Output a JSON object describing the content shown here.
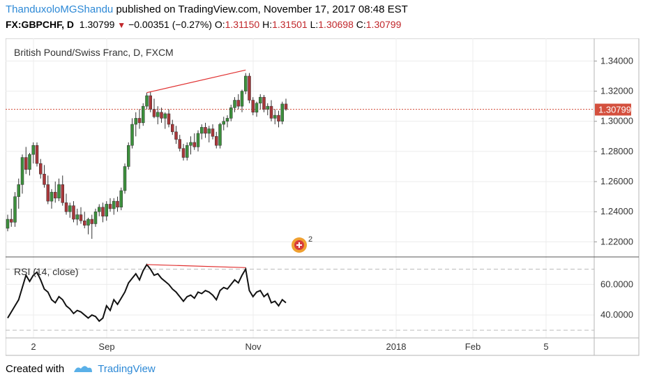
{
  "header": {
    "author": "ThanduxoloMGShandu",
    "published_text": "published on TradingView.com, November 17, 2017 08:48 EST",
    "symbol": "FX:GBPCHF, D",
    "last": "1.30799",
    "change": "−0.00351 (−0.27%)",
    "o_label": "O:",
    "o_val": "1.31150",
    "h_label": "H:",
    "h_val": "1.31501",
    "l_label": "L:",
    "l_val": "1.30698",
    "c_label": "C:",
    "c_val": "1.30799"
  },
  "main_pane": {
    "legend": "British Pound/Swiss Franc, D, FXCM",
    "price_ticks": [
      "1.34000",
      "1.32000",
      "1.30000",
      "1.28000",
      "1.26000",
      "1.24000",
      "1.22000"
    ],
    "current_price_label": "1.30799",
    "event_badge_count": "2"
  },
  "rsi_pane": {
    "legend": "RSI (14, close)",
    "ticks": [
      "60.0000",
      "40.0000"
    ]
  },
  "time_axis": {
    "ticks": [
      "2",
      "Sep",
      "Nov",
      "2018",
      "Feb",
      "5"
    ]
  },
  "footer": {
    "created_with": "Created with",
    "brand": "TradingView"
  },
  "colors": {
    "up": "#3c8f3c",
    "down": "#a8373a",
    "accent": "#2d89d6",
    "price_badge": "#d4503e"
  },
  "chart_data": {
    "type": "candlestick",
    "title": "British Pound/Swiss Franc, D, FXCM",
    "ylim": [
      1.21,
      1.355
    ],
    "rsi_ylim": [
      25,
      78
    ],
    "rsi_levels": [
      70,
      30
    ],
    "current_price": 1.30799,
    "candles": [
      {
        "o": 1.229,
        "h": 1.238,
        "l": 1.227,
        "c": 1.235
      },
      {
        "o": 1.235,
        "h": 1.242,
        "l": 1.23,
        "c": 1.233
      },
      {
        "o": 1.233,
        "h": 1.253,
        "l": 1.23,
        "c": 1.25
      },
      {
        "o": 1.25,
        "h": 1.262,
        "l": 1.242,
        "c": 1.258
      },
      {
        "o": 1.258,
        "h": 1.278,
        "l": 1.252,
        "c": 1.276
      },
      {
        "o": 1.276,
        "h": 1.283,
        "l": 1.265,
        "c": 1.268
      },
      {
        "o": 1.268,
        "h": 1.279,
        "l": 1.264,
        "c": 1.278
      },
      {
        "o": 1.278,
        "h": 1.286,
        "l": 1.272,
        "c": 1.284
      },
      {
        "o": 1.284,
        "h": 1.286,
        "l": 1.27,
        "c": 1.272
      },
      {
        "o": 1.272,
        "h": 1.275,
        "l": 1.262,
        "c": 1.265
      },
      {
        "o": 1.265,
        "h": 1.271,
        "l": 1.256,
        "c": 1.258
      },
      {
        "o": 1.258,
        "h": 1.264,
        "l": 1.245,
        "c": 1.247
      },
      {
        "o": 1.247,
        "h": 1.255,
        "l": 1.242,
        "c": 1.253
      },
      {
        "o": 1.253,
        "h": 1.26,
        "l": 1.246,
        "c": 1.249
      },
      {
        "o": 1.249,
        "h": 1.262,
        "l": 1.247,
        "c": 1.258
      },
      {
        "o": 1.258,
        "h": 1.264,
        "l": 1.244,
        "c": 1.246
      },
      {
        "o": 1.246,
        "h": 1.252,
        "l": 1.238,
        "c": 1.24
      },
      {
        "o": 1.24,
        "h": 1.246,
        "l": 1.236,
        "c": 1.244
      },
      {
        "o": 1.244,
        "h": 1.247,
        "l": 1.233,
        "c": 1.235
      },
      {
        "o": 1.235,
        "h": 1.242,
        "l": 1.231,
        "c": 1.238
      },
      {
        "o": 1.238,
        "h": 1.243,
        "l": 1.232,
        "c": 1.234
      },
      {
        "o": 1.234,
        "h": 1.24,
        "l": 1.229,
        "c": 1.231
      },
      {
        "o": 1.231,
        "h": 1.236,
        "l": 1.225,
        "c": 1.235
      },
      {
        "o": 1.235,
        "h": 1.238,
        "l": 1.222,
        "c": 1.232
      },
      {
        "o": 1.232,
        "h": 1.242,
        "l": 1.23,
        "c": 1.24
      },
      {
        "o": 1.24,
        "h": 1.245,
        "l": 1.237,
        "c": 1.243
      },
      {
        "o": 1.243,
        "h": 1.246,
        "l": 1.233,
        "c": 1.237
      },
      {
        "o": 1.237,
        "h": 1.247,
        "l": 1.234,
        "c": 1.245
      },
      {
        "o": 1.245,
        "h": 1.249,
        "l": 1.24,
        "c": 1.242
      },
      {
        "o": 1.242,
        "h": 1.249,
        "l": 1.238,
        "c": 1.247
      },
      {
        "o": 1.247,
        "h": 1.25,
        "l": 1.24,
        "c": 1.243
      },
      {
        "o": 1.243,
        "h": 1.256,
        "l": 1.241,
        "c": 1.254
      },
      {
        "o": 1.254,
        "h": 1.272,
        "l": 1.252,
        "c": 1.27
      },
      {
        "o": 1.27,
        "h": 1.286,
        "l": 1.268,
        "c": 1.284
      },
      {
        "o": 1.284,
        "h": 1.302,
        "l": 1.282,
        "c": 1.298
      },
      {
        "o": 1.298,
        "h": 1.306,
        "l": 1.29,
        "c": 1.302
      },
      {
        "o": 1.302,
        "h": 1.308,
        "l": 1.295,
        "c": 1.299
      },
      {
        "o": 1.299,
        "h": 1.312,
        "l": 1.297,
        "c": 1.31
      },
      {
        "o": 1.31,
        "h": 1.319,
        "l": 1.308,
        "c": 1.317
      },
      {
        "o": 1.317,
        "h": 1.3195,
        "l": 1.306,
        "c": 1.308
      },
      {
        "o": 1.308,
        "h": 1.315,
        "l": 1.302,
        "c": 1.303
      },
      {
        "o": 1.303,
        "h": 1.31,
        "l": 1.298,
        "c": 1.306
      },
      {
        "o": 1.306,
        "h": 1.309,
        "l": 1.299,
        "c": 1.302
      },
      {
        "o": 1.302,
        "h": 1.306,
        "l": 1.295,
        "c": 1.305
      },
      {
        "o": 1.305,
        "h": 1.308,
        "l": 1.296,
        "c": 1.298
      },
      {
        "o": 1.298,
        "h": 1.301,
        "l": 1.291,
        "c": 1.293
      },
      {
        "o": 1.293,
        "h": 1.297,
        "l": 1.285,
        "c": 1.288
      },
      {
        "o": 1.288,
        "h": 1.291,
        "l": 1.28,
        "c": 1.282
      },
      {
        "o": 1.282,
        "h": 1.285,
        "l": 1.274,
        "c": 1.276
      },
      {
        "o": 1.276,
        "h": 1.286,
        "l": 1.274,
        "c": 1.284
      },
      {
        "o": 1.284,
        "h": 1.29,
        "l": 1.278,
        "c": 1.286
      },
      {
        "o": 1.286,
        "h": 1.292,
        "l": 1.281,
        "c": 1.283
      },
      {
        "o": 1.283,
        "h": 1.294,
        "l": 1.28,
        "c": 1.292
      },
      {
        "o": 1.292,
        "h": 1.298,
        "l": 1.288,
        "c": 1.296
      },
      {
        "o": 1.296,
        "h": 1.299,
        "l": 1.289,
        "c": 1.292
      },
      {
        "o": 1.292,
        "h": 1.297,
        "l": 1.286,
        "c": 1.295
      },
      {
        "o": 1.295,
        "h": 1.298,
        "l": 1.288,
        "c": 1.29
      },
      {
        "o": 1.29,
        "h": 1.293,
        "l": 1.282,
        "c": 1.284
      },
      {
        "o": 1.284,
        "h": 1.299,
        "l": 1.282,
        "c": 1.298
      },
      {
        "o": 1.298,
        "h": 1.303,
        "l": 1.294,
        "c": 1.3
      },
      {
        "o": 1.3,
        "h": 1.304,
        "l": 1.296,
        "c": 1.302
      },
      {
        "o": 1.302,
        "h": 1.311,
        "l": 1.3,
        "c": 1.309
      },
      {
        "o": 1.309,
        "h": 1.316,
        "l": 1.306,
        "c": 1.314
      },
      {
        "o": 1.314,
        "h": 1.318,
        "l": 1.308,
        "c": 1.31
      },
      {
        "o": 1.31,
        "h": 1.321,
        "l": 1.306,
        "c": 1.32
      },
      {
        "o": 1.32,
        "h": 1.332,
        "l": 1.318,
        "c": 1.33
      },
      {
        "o": 1.33,
        "h": 1.332,
        "l": 1.312,
        "c": 1.314
      },
      {
        "o": 1.314,
        "h": 1.316,
        "l": 1.304,
        "c": 1.306
      },
      {
        "o": 1.306,
        "h": 1.313,
        "l": 1.303,
        "c": 1.312
      },
      {
        "o": 1.312,
        "h": 1.318,
        "l": 1.308,
        "c": 1.316
      },
      {
        "o": 1.316,
        "h": 1.3175,
        "l": 1.306,
        "c": 1.308
      },
      {
        "o": 1.308,
        "h": 1.312,
        "l": 1.304,
        "c": 1.31
      },
      {
        "o": 1.31,
        "h": 1.314,
        "l": 1.3,
        "c": 1.302
      },
      {
        "o": 1.302,
        "h": 1.308,
        "l": 1.298,
        "c": 1.304
      },
      {
        "o": 1.304,
        "h": 1.307,
        "l": 1.296,
        "c": 1.3
      },
      {
        "o": 1.3,
        "h": 1.313,
        "l": 1.298,
        "c": 1.3115
      },
      {
        "o": 1.3115,
        "h": 1.315,
        "l": 1.307,
        "c": 1.308
      }
    ],
    "rsi": [
      38,
      42,
      46,
      50,
      58,
      66,
      62,
      66,
      68,
      63,
      57,
      55,
      50,
      48,
      52,
      50,
      46,
      44,
      41,
      43,
      42,
      40,
      38,
      40,
      39,
      36,
      38,
      46,
      43,
      50,
      47,
      51,
      55,
      61,
      64,
      67,
      63,
      69,
      73,
      70,
      66,
      67,
      64,
      62,
      60,
      57,
      55,
      52,
      49,
      52,
      53,
      51,
      55,
      54,
      56,
      55,
      53,
      50,
      56,
      58,
      57,
      60,
      63,
      61,
      66,
      70,
      56,
      52,
      55,
      56,
      52,
      54,
      48,
      49,
      46,
      50,
      48
    ],
    "price_divergence_line": {
      "from": [
        38,
        1.319
      ],
      "to": [
        65,
        1.334
      ]
    },
    "rsi_divergence_line": {
      "from": [
        38,
        73
      ],
      "to": [
        65,
        71
      ]
    }
  }
}
